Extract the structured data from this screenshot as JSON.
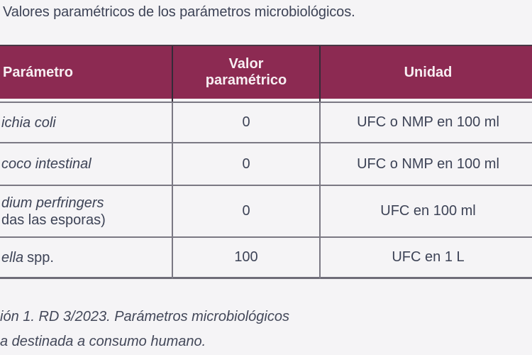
{
  "title": "Valores paramétricos de los parámetros microbiológicos.",
  "table": {
    "headers": {
      "parameter": "Parámetro",
      "value": "Valor paramétrico",
      "unit": "Unidad"
    },
    "rows": [
      {
        "parameter_italic": "ichia coli",
        "parameter_rest": "",
        "value": "0",
        "unit": "UFC o NMP en 100 ml"
      },
      {
        "parameter_italic": "coco intestinal",
        "parameter_rest": "",
        "value": "0",
        "unit": "UFC o NMP en 100 ml"
      },
      {
        "parameter_italic": "dium perfringers",
        "parameter_rest": "das las esporas)",
        "value": "0",
        "unit": "UFC en 100 ml"
      },
      {
        "parameter_italic": "ella",
        "parameter_rest": "spp.",
        "value": "100",
        "unit": "UFC en 1 L"
      }
    ]
  },
  "caption": {
    "line1": "ión 1. RD 3/2023. Parámetros microbiológicos",
    "line2": "a destinada a consumo humano."
  },
  "colors": {
    "background": "#f5f4f6",
    "header_background": "#8c2a52",
    "header_text": "#f7eef2",
    "body_text": "#3d4356",
    "grid_line_gray": "#7b7984",
    "table_top_border": "#473844",
    "table_bottom_border": "#6f6d78",
    "header_divider_dark": "#342b38"
  }
}
